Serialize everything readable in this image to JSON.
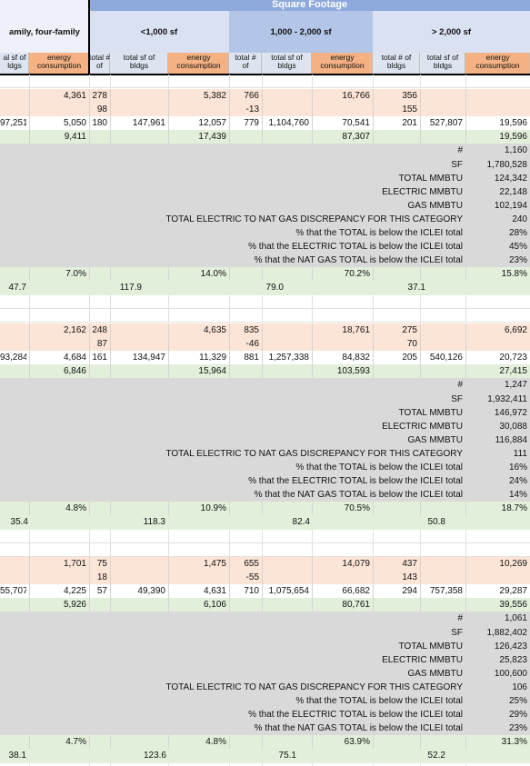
{
  "header": {
    "title": "Square Footage",
    "groups": [
      "amily, four-family",
      "<1,000 sf",
      "1,000 - 2,000 sf",
      "> 2,000 sf"
    ],
    "subheaders": [
      [
        "al sf of",
        "ldgs"
      ],
      [
        "energy",
        "consumption"
      ],
      [
        "total #",
        "of"
      ],
      [
        "total sf of",
        "bldgs"
      ],
      [
        "energy",
        "consumption"
      ],
      [
        "total #",
        "of"
      ],
      [
        "total sf of",
        "bldgs"
      ],
      [
        "energy",
        "consumption"
      ],
      [
        "total # of",
        "bldgs"
      ],
      [
        "total sf of",
        "bldgs"
      ],
      [
        "energy",
        "consumption"
      ]
    ]
  },
  "sections": [
    {
      "rows": [
        [
          null,
          "4,361",
          "278",
          null,
          "5,382",
          "766",
          null,
          "16,766",
          "356",
          null,
          null
        ],
        [
          null,
          null,
          "98",
          null,
          null,
          "-13",
          null,
          null,
          "155",
          null,
          null
        ],
        [
          "97,251",
          "5,050",
          "180",
          "147,961",
          "12,057",
          "779",
          "1,104,760",
          "70,541",
          "201",
          "527,807",
          "19,596"
        ],
        [
          null,
          "9,411",
          null,
          null,
          "17,439",
          null,
          null,
          "87,307",
          null,
          null,
          "19,596"
        ]
      ],
      "summary": [
        [
          "#",
          "1,160"
        ],
        [
          "SF",
          "1,780,528"
        ],
        [
          "TOTAL MMBTU",
          "124,342"
        ],
        [
          "ELECTRIC MMBTU",
          "22,148"
        ],
        [
          "GAS MMBTU",
          "102,194"
        ],
        [
          "TOTAL ELECTRIC TO NAT GAS DISCREPANCY FOR THIS CATEGORY",
          "240"
        ],
        [
          "% that the TOTAL is below the ICLEI total",
          "28%"
        ],
        [
          "% that the ELECTRIC TOTAL is below the ICLEI total",
          "45%"
        ],
        [
          "% that the NAT GAS TOTAL is below the ICLEI total",
          "23%"
        ]
      ],
      "percents": [
        "7.0%",
        "14.0%",
        "70.2%",
        "15.8%"
      ],
      "averages": [
        "47.7",
        "117.9",
        "79.0",
        "37.1"
      ]
    },
    {
      "rows": [
        [
          null,
          "2,162",
          "248",
          null,
          "4,635",
          "835",
          null,
          "18,761",
          "275",
          null,
          "6,692"
        ],
        [
          null,
          null,
          "87",
          null,
          null,
          "-46",
          null,
          null,
          "70",
          null,
          null
        ],
        [
          "93,284",
          "4,684",
          "161",
          "134,947",
          "11,329",
          "881",
          "1,257,338",
          "84,832",
          "205",
          "540,126",
          "20,723"
        ],
        [
          null,
          "6,846",
          null,
          null,
          "15,964",
          null,
          null,
          "103,593",
          null,
          null,
          "27,415"
        ]
      ],
      "summary": [
        [
          "#",
          "1,247"
        ],
        [
          "SF",
          "1,932,411"
        ],
        [
          "TOTAL MMBTU",
          "146,972"
        ],
        [
          "ELECTRIC MMBTU",
          "30,088"
        ],
        [
          "GAS MMBTU",
          "116,884"
        ],
        [
          "TOTAL ELECTRIC TO NAT GAS DISCREPANCY FOR THIS CATEGORY",
          "111"
        ],
        [
          "% that the TOTAL is below the ICLEI total",
          "16%"
        ],
        [
          "% that the ELECTRIC TOTAL is below the ICLEI total",
          "24%"
        ],
        [
          "% that the NAT GAS TOTAL is below the ICLEI total",
          "14%"
        ]
      ],
      "percents": [
        "4.8%",
        "10.9%",
        "70.5%",
        "18.7%"
      ],
      "averages": [
        "35.4",
        "118.3",
        "82.4",
        "50.8"
      ]
    },
    {
      "rows": [
        [
          null,
          "1,701",
          "75",
          null,
          "1,475",
          "655",
          null,
          "14,079",
          "437",
          null,
          "10,269"
        ],
        [
          null,
          null,
          "18",
          null,
          null,
          "-55",
          null,
          null,
          "143",
          null,
          null
        ],
        [
          "55,707",
          "4,225",
          "57",
          "49,390",
          "4,631",
          "710",
          "1,075,654",
          "66,682",
          "294",
          "757,358",
          "29,287"
        ],
        [
          null,
          "5,926",
          null,
          null,
          "6,106",
          null,
          null,
          "80,761",
          null,
          null,
          "39,556"
        ]
      ],
      "summary": [
        [
          "#",
          "1,061"
        ],
        [
          "SF",
          "1,882,402"
        ],
        [
          "TOTAL MMBTU",
          "126,423"
        ],
        [
          "ELECTRIC MMBTU",
          "25,823"
        ],
        [
          "GAS MMBTU",
          "100,600"
        ],
        [
          "TOTAL ELECTRIC TO NAT GAS DISCREPANCY FOR THIS CATEGORY",
          "106"
        ],
        [
          "% that the TOTAL is below the ICLEI total",
          "25%"
        ],
        [
          "% that the ELECTRIC TOTAL is below the ICLEI total",
          "29%"
        ],
        [
          "% that the NAT GAS TOTAL is below the ICLEI total",
          "23%"
        ]
      ],
      "percents": [
        "4.7%",
        "4.8%",
        "63.9%",
        "31.3%"
      ],
      "averages": [
        "38.1",
        "123.6",
        "75.1",
        "52.2"
      ]
    }
  ]
}
